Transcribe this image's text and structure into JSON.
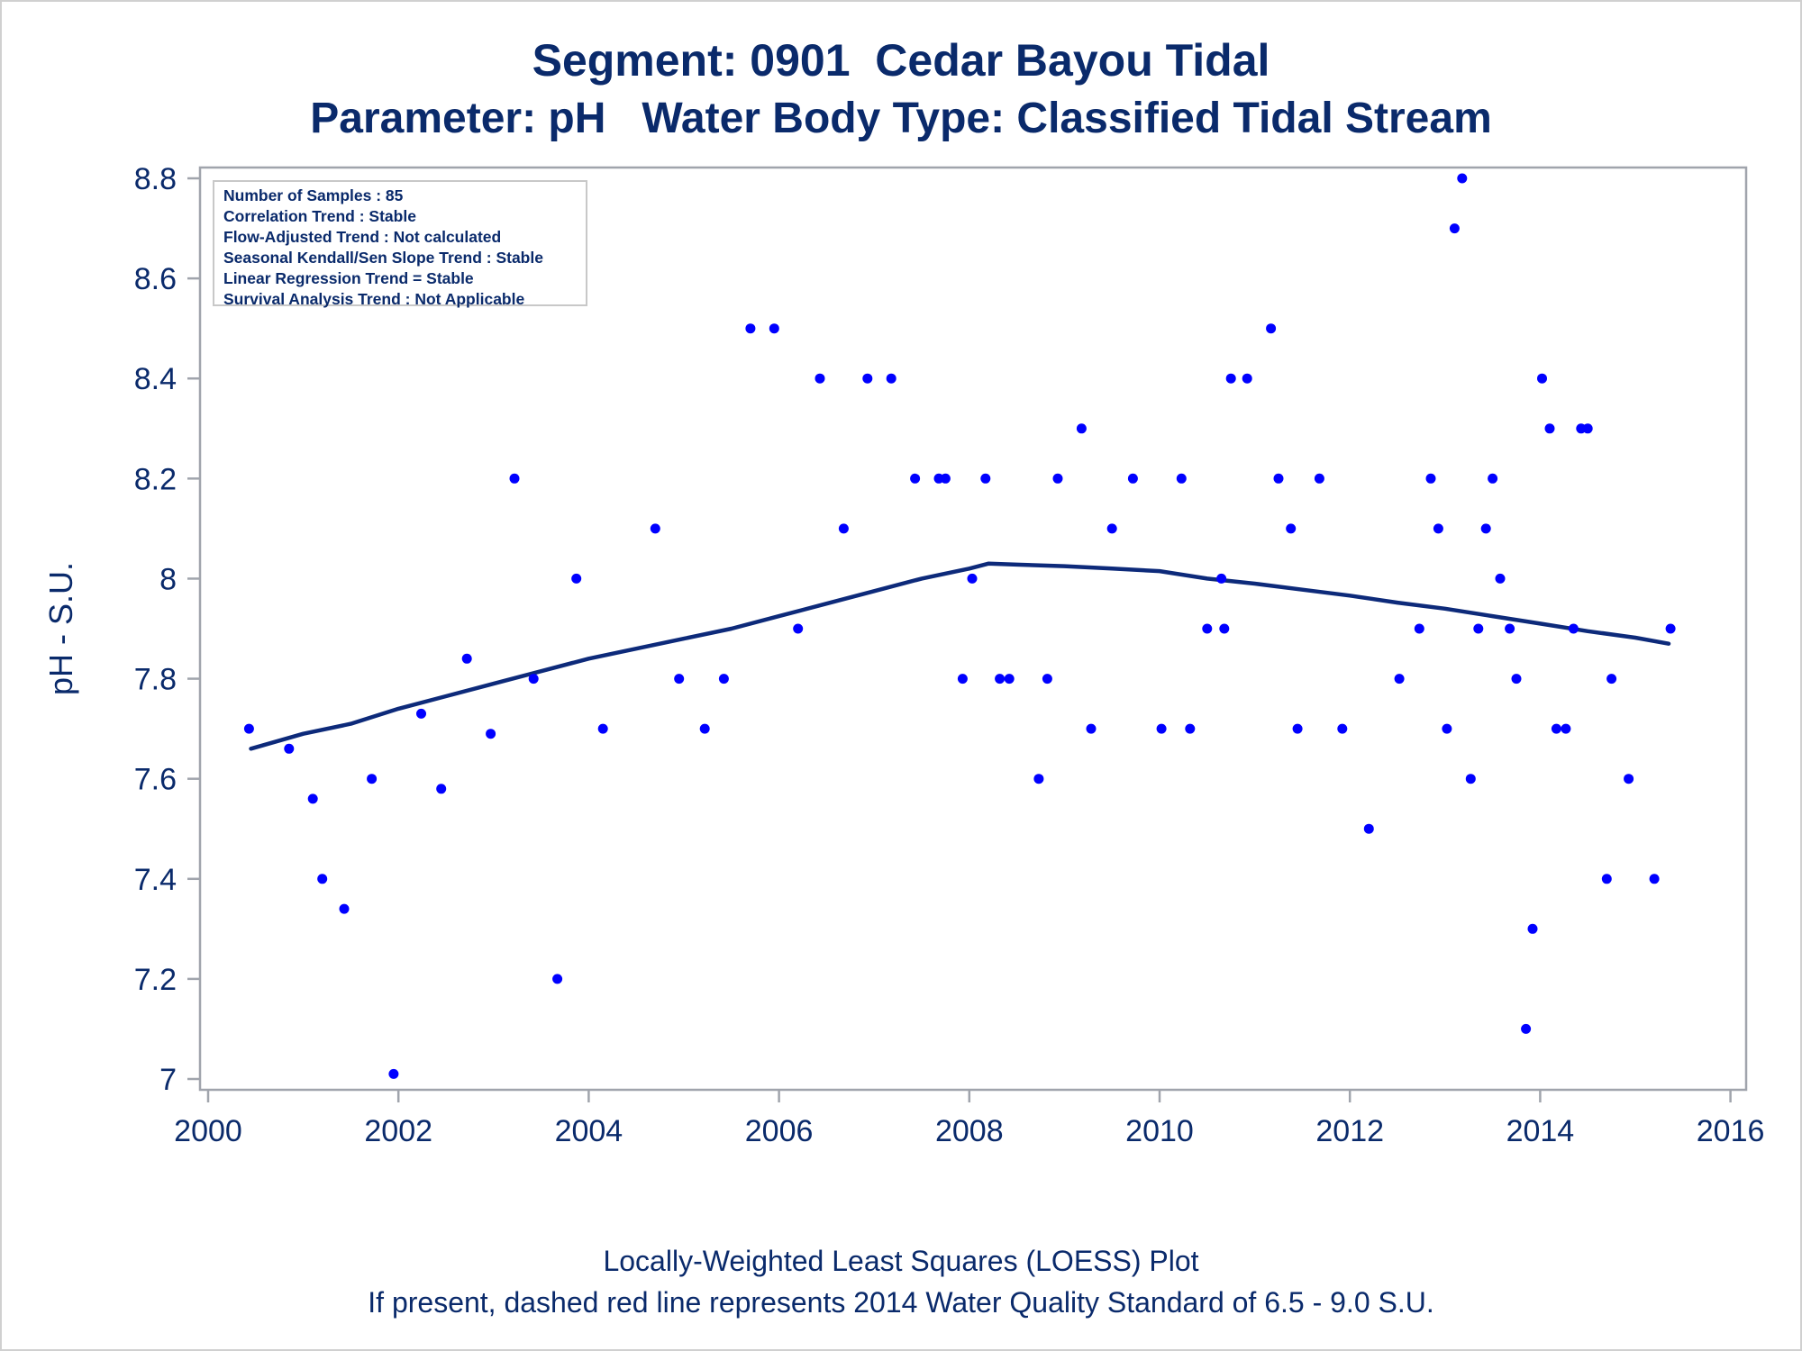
{
  "chart_data": {
    "type": "scatter",
    "title": "Segment: 0901  Cedar Bayou Tidal",
    "subtitle": "Parameter: pH   Water Body Type: Classified Tidal Stream",
    "xlabel": "",
    "ylabel": "pH - S.U.",
    "xlim": [
      2000,
      2016
    ],
    "ylim": [
      7.0,
      8.8
    ],
    "x_ticks": [
      "2000",
      "2002",
      "2004",
      "2006",
      "2008",
      "2010",
      "2012",
      "2014",
      "2016"
    ],
    "y_ticks": [
      "7",
      "7.2",
      "7.4",
      "7.6",
      "7.8",
      "8",
      "8.2",
      "8.4",
      "8.6",
      "8.8"
    ],
    "grid": false,
    "legend": "none",
    "colors": {
      "points": "#0000ff",
      "loess": "#0d2a7a",
      "text": "#0a2a6b",
      "axis": "#a0a4ac"
    },
    "series": [
      {
        "type": "scatter",
        "x": [
          2000.43,
          2000.85,
          2001.1,
          2001.2,
          2001.43,
          2001.72,
          2001.95,
          2002.24,
          2002.45,
          2002.72,
          2002.97,
          2003.22,
          2003.42,
          2003.67,
          2003.87,
          2004.15,
          2004.7,
          2004.95,
          2005.22,
          2005.42,
          2005.7,
          2005.95,
          2006.2,
          2006.43,
          2006.68,
          2006.93,
          2007.18,
          2007.43,
          2007.68,
          2007.75,
          2007.93,
          2008.03,
          2008.17,
          2008.32,
          2008.42,
          2008.73,
          2008.82,
          2008.93,
          2009.18,
          2009.28,
          2009.5,
          2009.72,
          2010.02,
          2010.23,
          2010.32,
          2010.5,
          2010.65,
          2010.68,
          2010.75,
          2010.92,
          2011.17,
          2011.25,
          2011.38,
          2011.45,
          2011.68,
          2011.92,
          2012.2,
          2012.52,
          2012.73,
          2012.85,
          2012.93,
          2013.02,
          2013.1,
          2013.18,
          2013.27,
          2013.35,
          2013.43,
          2013.5,
          2013.58,
          2013.68,
          2013.75,
          2013.85,
          2013.92,
          2014.02,
          2014.1,
          2014.17,
          2014.27,
          2014.35,
          2014.43,
          2014.5,
          2014.7,
          2014.75,
          2014.93,
          2015.2,
          2015.37
        ],
        "y": [
          7.7,
          7.66,
          7.56,
          7.4,
          7.34,
          7.6,
          7.01,
          7.73,
          7.58,
          7.84,
          7.69,
          8.2,
          7.8,
          7.2,
          8.0,
          7.7,
          8.1,
          7.8,
          7.7,
          7.8,
          8.5,
          8.5,
          7.9,
          8.4,
          8.1,
          8.4,
          8.4,
          8.2,
          8.2,
          8.2,
          7.8,
          8.0,
          8.2,
          7.8,
          7.8,
          7.6,
          7.8,
          8.2,
          8.3,
          7.7,
          8.1,
          8.2,
          7.7,
          8.2,
          7.7,
          7.9,
          8.0,
          7.9,
          8.4,
          8.4,
          8.5,
          8.2,
          8.1,
          7.7,
          8.2,
          7.7,
          7.5,
          7.8,
          7.9,
          8.2,
          8.1,
          7.7,
          8.7,
          8.8,
          7.6,
          7.9,
          8.1,
          8.2,
          8.0,
          7.9,
          7.8,
          7.1,
          7.3,
          8.4,
          8.3,
          7.7,
          7.7,
          7.9,
          8.3,
          8.3,
          7.4,
          7.8,
          7.6,
          7.4,
          7.9
        ]
      },
      {
        "type": "line",
        "x": [
          2000.45,
          2001.0,
          2001.5,
          2002.0,
          2002.5,
          2003.0,
          2003.5,
          2004.0,
          2004.5,
          2005.0,
          2005.5,
          2006.0,
          2006.5,
          2007.0,
          2007.5,
          2008.0,
          2008.2,
          2008.5,
          2009.0,
          2009.5,
          2010.0,
          2010.5,
          2011.0,
          2011.5,
          2012.0,
          2012.5,
          2013.0,
          2013.5,
          2014.0,
          2014.5,
          2015.0,
          2015.35
        ],
        "y": [
          7.66,
          7.69,
          7.71,
          7.74,
          7.765,
          7.79,
          7.815,
          7.84,
          7.86,
          7.88,
          7.9,
          7.925,
          7.95,
          7.975,
          8.0,
          8.02,
          8.03,
          8.028,
          8.025,
          8.02,
          8.015,
          8.0,
          7.99,
          7.978,
          7.966,
          7.952,
          7.94,
          7.925,
          7.91,
          7.895,
          7.882,
          7.87
        ]
      }
    ]
  },
  "stats_box": [
    "Number of Samples : 85",
    "Correlation Trend : Stable",
    "Flow-Adjusted Trend : Not calculated",
    "Seasonal Kendall/Sen Slope Trend : Stable",
    "Linear Regression Trend = Stable",
    "Survival Analysis Trend : Not Applicable"
  ],
  "footnotes": [
    "Locally-Weighted Least Squares (LOESS) Plot",
    "If present, dashed red line represents 2014 Water Quality Standard of 6.5 - 9.0 S.U."
  ]
}
